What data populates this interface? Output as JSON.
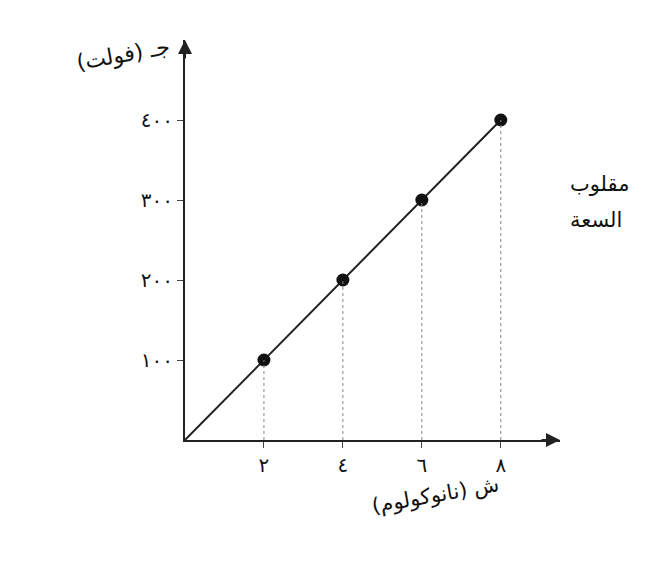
{
  "chart_data": {
    "type": "scatter",
    "y_label": "جـ (فولت)",
    "x_label": "ش (نانوكولوم)",
    "xlim": [
      0,
      9.5
    ],
    "ylim": [
      0,
      500
    ],
    "xticks": [
      {
        "value": 2,
        "label": "٢"
      },
      {
        "value": 4,
        "label": "٤"
      },
      {
        "value": 6,
        "label": "٦"
      },
      {
        "value": 8,
        "label": "٨"
      }
    ],
    "yticks": [
      {
        "value": 100,
        "label": "١٠٠"
      },
      {
        "value": 200,
        "label": "٢٠٠"
      },
      {
        "value": 300,
        "label": "٣٠٠"
      },
      {
        "value": 400,
        "label": "٤٠٠"
      }
    ],
    "grid": false,
    "series": [
      {
        "type": "line",
        "color": "#222222",
        "line_style": "solid",
        "x": [
          0,
          8
        ],
        "values": [
          0,
          400
        ]
      },
      {
        "type": "scatter",
        "color": "#111111",
        "marker": "circle",
        "x": [
          2,
          4,
          6,
          8
        ],
        "values": [
          100,
          200,
          300,
          400
        ]
      }
    ],
    "annotations": [
      {
        "text": "مقلوب"
      },
      {
        "text": "السعة"
      }
    ]
  }
}
